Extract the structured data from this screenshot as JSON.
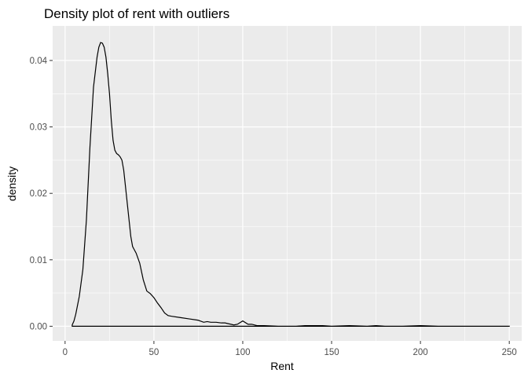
{
  "chart_data": {
    "type": "line",
    "title": "Density plot of rent with outliers",
    "xlabel": "Rent",
    "ylabel": "density",
    "xlim": [
      -7,
      257
    ],
    "ylim": [
      -0.0022,
      0.0452
    ],
    "x_ticks": [
      0,
      50,
      100,
      150,
      200,
      250
    ],
    "x_tick_labels": [
      "0",
      "50",
      "100",
      "150",
      "200",
      "250"
    ],
    "y_ticks": [
      0,
      0.01,
      0.02,
      0.03,
      0.04
    ],
    "y_tick_labels": [
      "0.00",
      "0.01",
      "0.02",
      "0.03",
      "0.04"
    ],
    "grid": true,
    "legend": "none",
    "panel_color": "#ebebeb",
    "grid_color": "#ffffff",
    "line_color": "#000000",
    "series": [
      {
        "x": [
          4,
          5,
          6,
          8,
          10,
          12,
          14,
          16,
          18,
          19,
          20,
          21,
          22,
          23,
          24,
          25,
          26,
          27,
          28,
          29,
          30,
          31,
          32,
          33,
          34,
          35,
          36,
          37,
          38,
          39,
          40,
          42,
          44,
          46,
          48,
          50,
          52,
          54,
          56,
          58,
          60,
          65,
          70,
          75,
          78,
          80,
          82,
          85,
          88,
          90,
          95,
          97,
          100,
          103,
          105,
          108,
          112,
          120,
          130,
          135,
          140,
          145,
          150,
          160,
          170,
          175,
          180,
          190,
          200,
          210,
          220,
          230,
          240,
          250
        ],
        "y": [
          0.0002,
          0.0008,
          0.0018,
          0.0045,
          0.0085,
          0.016,
          0.027,
          0.036,
          0.0405,
          0.042,
          0.0427,
          0.0426,
          0.042,
          0.0405,
          0.038,
          0.035,
          0.031,
          0.028,
          0.0265,
          0.026,
          0.0258,
          0.0255,
          0.025,
          0.0235,
          0.021,
          0.0185,
          0.016,
          0.0135,
          0.012,
          0.0115,
          0.011,
          0.0095,
          0.007,
          0.0053,
          0.0049,
          0.0043,
          0.0035,
          0.0028,
          0.002,
          0.0016,
          0.0015,
          0.0013,
          0.0011,
          0.0009,
          0.0006,
          0.0007,
          0.0006,
          0.0006,
          0.0005,
          0.0005,
          0.0002,
          0.0003,
          0.0008,
          0.0003,
          0.0003,
          0.0001,
          0.0001,
          0.0,
          0.0,
          0.0001,
          0.0001,
          0.0001,
          0.0,
          0.0001,
          0.0,
          0.0001,
          0.0,
          0.0,
          0.0001,
          0.0,
          0.0,
          0.0,
          0.0,
          0.0
        ]
      }
    ]
  }
}
